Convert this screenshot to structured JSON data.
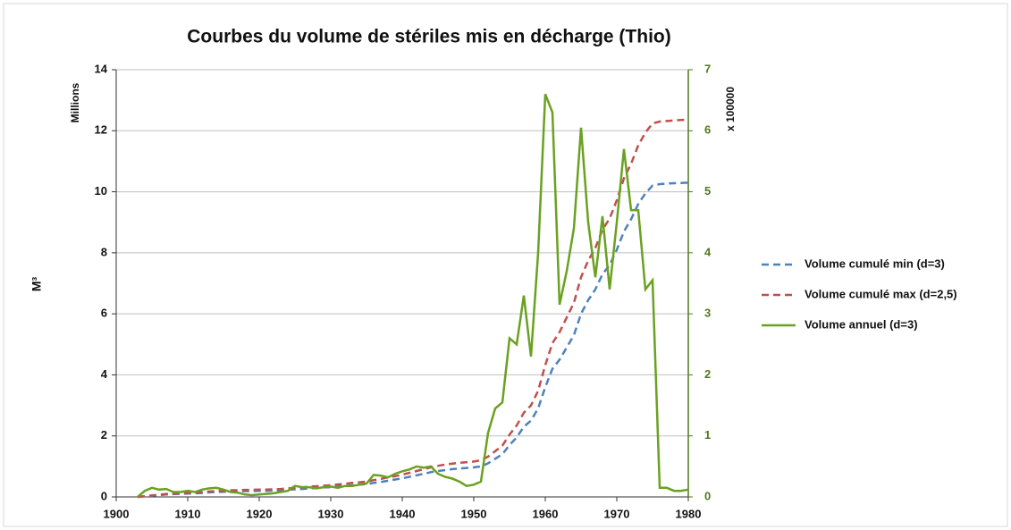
{
  "chart_data": {
    "type": "line",
    "title": "Courbes du volume de stériles mis en décharge (Thio)",
    "y_label": "M³",
    "y_unit_label": "Millions",
    "y2_unit_label": "x 100000",
    "x": [
      1903,
      1904,
      1905,
      1906,
      1907,
      1908,
      1909,
      1910,
      1911,
      1912,
      1913,
      1914,
      1915,
      1916,
      1917,
      1918,
      1919,
      1920,
      1921,
      1922,
      1923,
      1924,
      1925,
      1926,
      1927,
      1928,
      1929,
      1930,
      1931,
      1932,
      1933,
      1934,
      1935,
      1936,
      1937,
      1938,
      1939,
      1940,
      1941,
      1942,
      1943,
      1944,
      1945,
      1946,
      1947,
      1948,
      1949,
      1950,
      1951,
      1952,
      1953,
      1954,
      1955,
      1956,
      1957,
      1958,
      1959,
      1960,
      1961,
      1962,
      1963,
      1964,
      1965,
      1966,
      1967,
      1968,
      1969,
      1970,
      1971,
      1972,
      1973,
      1974,
      1975,
      1976,
      1977,
      1978,
      1979,
      1980
    ],
    "series": [
      {
        "name": "Volume cumulé min (d=3)",
        "color": "#4f81bd",
        "dashed": true,
        "values": [
          0,
          0.02,
          0.04,
          0.06,
          0.08,
          0.09,
          0.1,
          0.11,
          0.12,
          0.13,
          0.15,
          0.16,
          0.17,
          0.18,
          0.18,
          0.19,
          0.19,
          0.2,
          0.2,
          0.21,
          0.22,
          0.23,
          0.25,
          0.26,
          0.28,
          0.29,
          0.31,
          0.32,
          0.34,
          0.36,
          0.38,
          0.4,
          0.42,
          0.46,
          0.49,
          0.53,
          0.57,
          0.61,
          0.66,
          0.71,
          0.76,
          0.81,
          0.85,
          0.88,
          0.91,
          0.93,
          0.95,
          0.97,
          1.0,
          1.1,
          1.25,
          1.4,
          1.7,
          1.95,
          2.3,
          2.5,
          2.9,
          3.6,
          4.2,
          4.5,
          4.9,
          5.3,
          6.0,
          6.45,
          6.8,
          7.3,
          7.6,
          8.1,
          8.7,
          9.1,
          9.6,
          9.95,
          10.2,
          10.25,
          10.27,
          10.28,
          10.29,
          10.3
        ]
      },
      {
        "name": "Volume cumulé max (d=2,5)",
        "color": "#c0504d",
        "dashed": true,
        "values": [
          0,
          0.02,
          0.05,
          0.07,
          0.1,
          0.11,
          0.12,
          0.13,
          0.14,
          0.16,
          0.18,
          0.19,
          0.2,
          0.22,
          0.22,
          0.23,
          0.23,
          0.24,
          0.24,
          0.25,
          0.26,
          0.28,
          0.3,
          0.31,
          0.34,
          0.35,
          0.37,
          0.38,
          0.41,
          0.43,
          0.46,
          0.48,
          0.5,
          0.55,
          0.59,
          0.64,
          0.68,
          0.73,
          0.79,
          0.85,
          0.91,
          0.97,
          1.02,
          1.06,
          1.09,
          1.12,
          1.14,
          1.16,
          1.2,
          1.32,
          1.5,
          1.68,
          2.04,
          2.34,
          2.76,
          3.0,
          3.48,
          4.32,
          5.04,
          5.4,
          5.88,
          6.36,
          7.2,
          7.74,
          8.16,
          8.76,
          9.12,
          9.72,
          10.44,
          10.92,
          11.52,
          11.94,
          12.24,
          12.3,
          12.32,
          12.34,
          12.35,
          12.36
        ]
      },
      {
        "name": "Volume annuel (d=3)",
        "color": "#6aa121",
        "dashed": false,
        "axis": "y2",
        "values": [
          0,
          0.1,
          0.15,
          0.12,
          0.13,
          0.08,
          0.08,
          0.1,
          0.08,
          0.12,
          0.14,
          0.15,
          0.12,
          0.08,
          0.07,
          0.04,
          0.03,
          0.04,
          0.05,
          0.06,
          0.08,
          0.1,
          0.18,
          0.16,
          0.16,
          0.14,
          0.16,
          0.17,
          0.15,
          0.18,
          0.18,
          0.2,
          0.22,
          0.36,
          0.35,
          0.32,
          0.38,
          0.42,
          0.45,
          0.5,
          0.48,
          0.5,
          0.38,
          0.33,
          0.3,
          0.25,
          0.18,
          0.2,
          0.25,
          1.05,
          1.45,
          1.55,
          2.6,
          2.5,
          3.3,
          2.3,
          4.0,
          6.6,
          6.3,
          3.15,
          3.7,
          4.4,
          6.05,
          4.5,
          3.6,
          4.6,
          3.4,
          4.5,
          5.7,
          4.7,
          4.7,
          3.4,
          3.55,
          0.15,
          0.15,
          0.1,
          0.1,
          0.12
        ]
      }
    ],
    "xlim": [
      1900,
      1980
    ],
    "xticks": [
      1900,
      1910,
      1920,
      1930,
      1940,
      1950,
      1960,
      1970,
      1980
    ],
    "ylim": [
      0,
      14
    ],
    "yticks": [
      0,
      2,
      4,
      6,
      8,
      10,
      12,
      14
    ],
    "y2lim": [
      0,
      7
    ],
    "y2ticks": [
      0,
      1,
      2,
      3,
      4,
      5,
      6,
      7
    ],
    "y2_color": "#4e7a1f",
    "grid": true,
    "legend": "right"
  }
}
